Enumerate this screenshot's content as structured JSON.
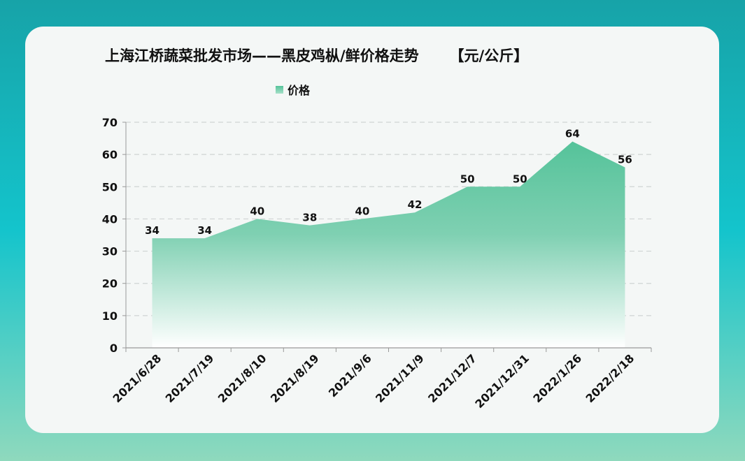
{
  "chart_data": {
    "type": "area",
    "title": "上海江桥蔬菜批发市场——黑皮鸡枞/鲜价格走势      【元/公斤】",
    "categories": [
      "2021/6/28",
      "2021/7/19",
      "2021/8/10",
      "2021/8/19",
      "2021/9/6",
      "2021/11/9",
      "2021/12/7",
      "2021/12/31",
      "2022/1/26",
      "2022/2/18"
    ],
    "series": [
      {
        "name": "价格",
        "values": [
          34,
          34,
          40,
          38,
          40,
          42,
          50,
          50,
          64,
          56
        ]
      }
    ],
    "ylim": [
      0,
      70
    ],
    "yticks": [
      0,
      10,
      20,
      30,
      40,
      50,
      60,
      70
    ],
    "grid": true,
    "legend": "top-center",
    "colors": {
      "area_top": "#55c39a",
      "area_bottom": "#ffffff"
    }
  }
}
